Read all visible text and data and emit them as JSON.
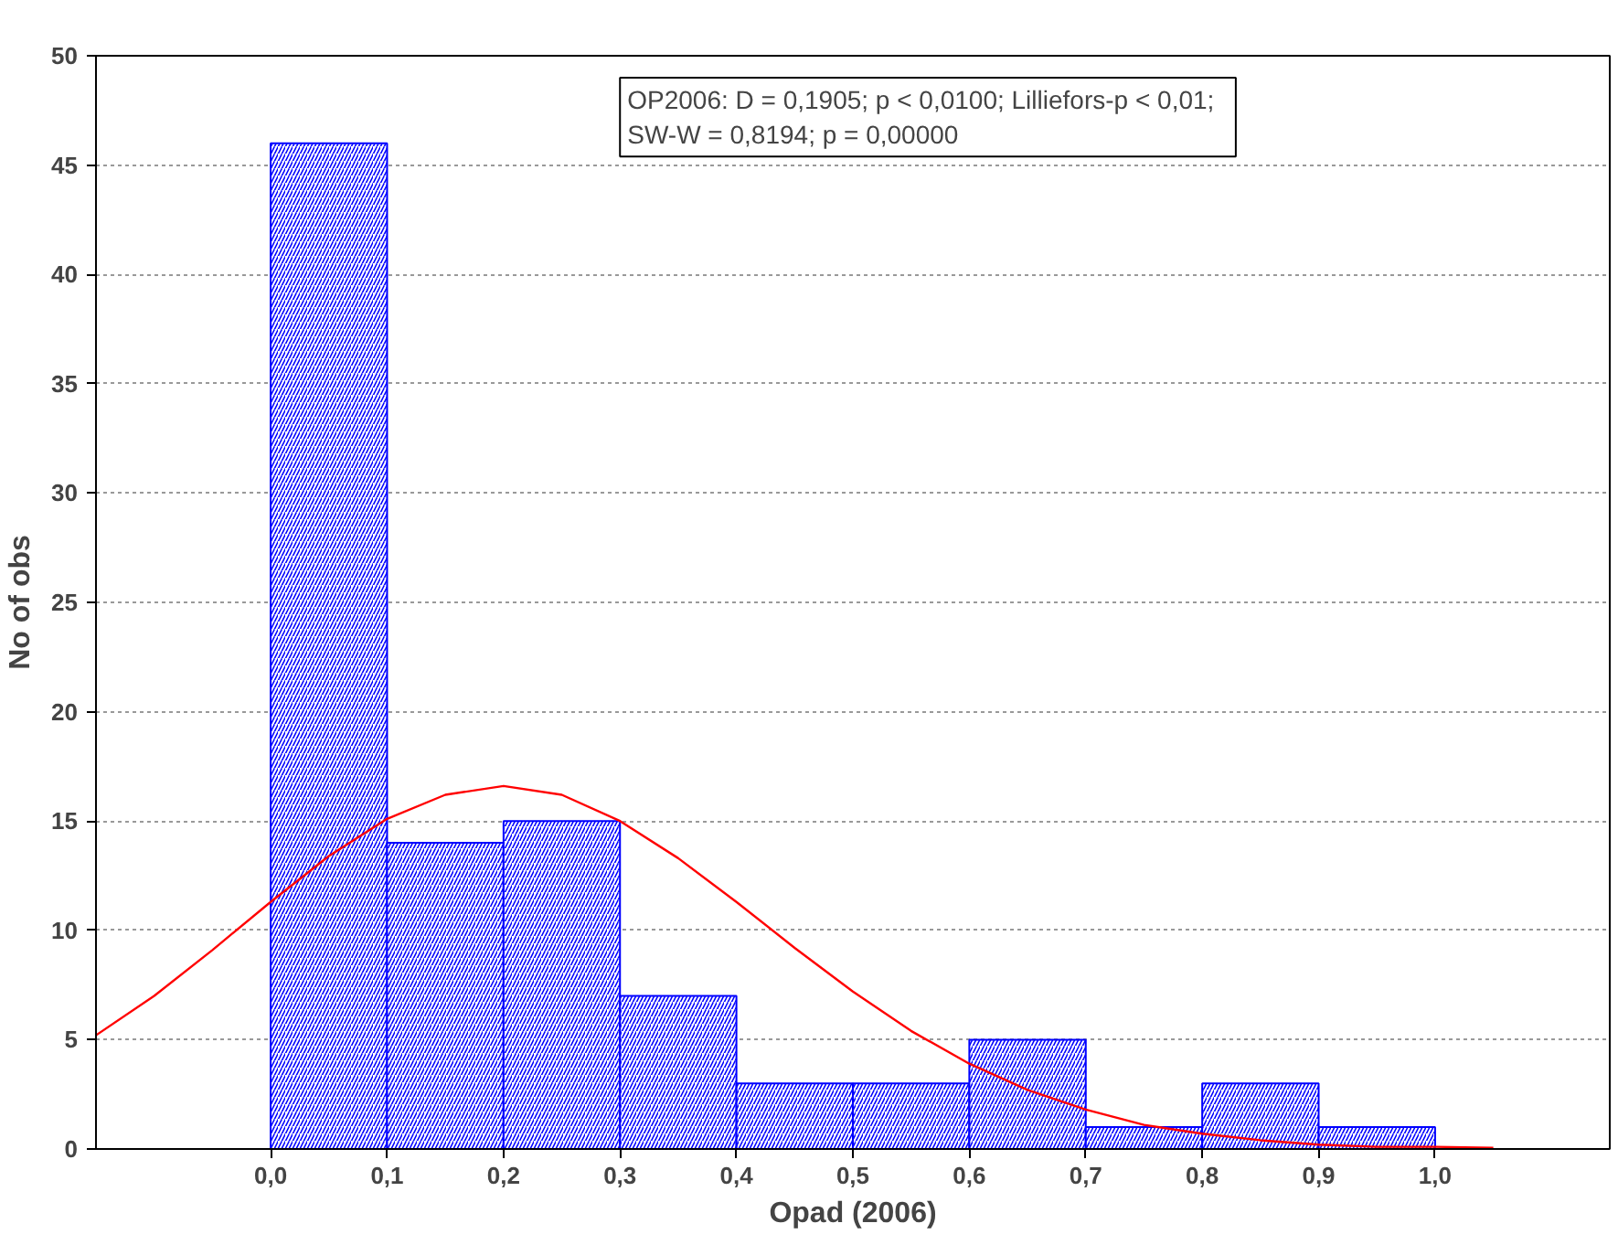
{
  "chart_data": {
    "type": "histogram",
    "xlabel": "Opad (2006)",
    "ylabel": "No of obs",
    "bins": [
      -0.1,
      0.0,
      0.1,
      0.2,
      0.3,
      0.4,
      0.5,
      0.6,
      0.7,
      0.8,
      0.9,
      1.0,
      1.1
    ],
    "values": [
      0,
      46,
      14,
      15,
      7,
      3,
      3,
      5,
      1,
      3,
      1,
      0
    ],
    "color": "#0000ff",
    "series": [
      {
        "type": "line",
        "color": "#ff0000",
        "x": [
          -0.15,
          -0.1,
          -0.05,
          0.0,
          0.05,
          0.1,
          0.15,
          0.2,
          0.25,
          0.3,
          0.35,
          0.4,
          0.45,
          0.5,
          0.55,
          0.6,
          0.65,
          0.7,
          0.75,
          0.8,
          0.85,
          0.9,
          0.95,
          1.0,
          1.05
        ],
        "values": [
          5.2,
          7.0,
          9.1,
          11.3,
          13.4,
          15.1,
          16.2,
          16.6,
          16.2,
          15.0,
          13.3,
          11.3,
          9.2,
          7.2,
          5.4,
          3.9,
          2.7,
          1.8,
          1.1,
          0.7,
          0.4,
          0.2,
          0.1,
          0.1,
          0.05
        ]
      }
    ],
    "xlim": [
      -0.15,
      1.15
    ],
    "ylim": [
      0,
      50
    ],
    "xticks": [
      {
        "value": 0.0,
        "label": "0,0"
      },
      {
        "value": 0.1,
        "label": "0,1"
      },
      {
        "value": 0.2,
        "label": "0,2"
      },
      {
        "value": 0.3,
        "label": "0,3"
      },
      {
        "value": 0.4,
        "label": "0,4"
      },
      {
        "value": 0.5,
        "label": "0,5"
      },
      {
        "value": 0.6,
        "label": "0,6"
      },
      {
        "value": 0.7,
        "label": "0,7"
      },
      {
        "value": 0.8,
        "label": "0,8"
      },
      {
        "value": 0.9,
        "label": "0,9"
      },
      {
        "value": 1.0,
        "label": "1,0"
      }
    ],
    "yticks": [
      0,
      5,
      10,
      15,
      20,
      25,
      30,
      35,
      40,
      45,
      50
    ],
    "grid": "y",
    "annotations": [
      "OP2006:   D = 0,1905; p < 0,0100; Lilliefors-p < 0,01;\nSW-W = 0,8194; p = 0,00000"
    ]
  }
}
